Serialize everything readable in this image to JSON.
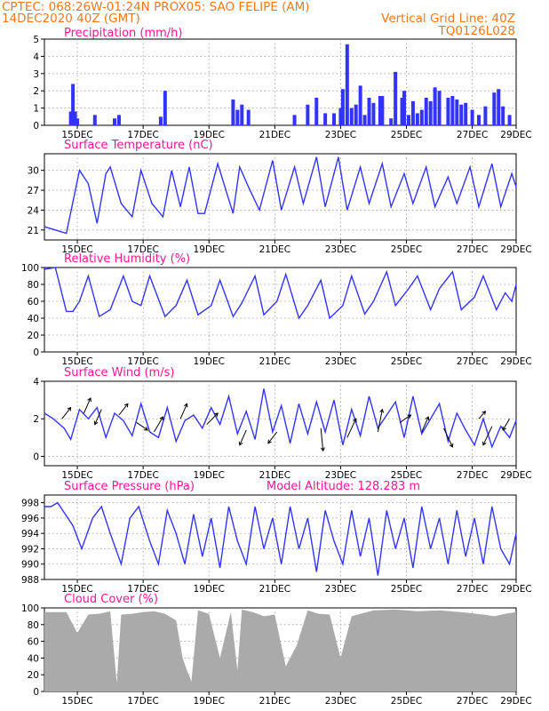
{
  "header": {
    "line1": "CPTEC:   068:26W-01:24N   PROX05: SAO FELIPE (AM)",
    "line2_left": "14DEC2020 40Z (GMT)",
    "line2_right": "Vertical Grid Line: 40Z",
    "line3_right": "TQ0126L028"
  },
  "colors": {
    "header": "#f07820",
    "title": "#ff1493",
    "series": "#3333ff",
    "wind_arrow": "#000000",
    "cloud": "#aaaaaa",
    "grid": "#999999"
  },
  "x_ticks": [
    "15DEC",
    "17DEC",
    "19DEC",
    "21DEC",
    "23DEC",
    "25DEC",
    "27DEC",
    "29DEC"
  ],
  "chart_data": [
    {
      "type": "bar",
      "title": "Precipitation (mm/h)",
      "ylim": [
        0,
        5
      ],
      "yticks": [
        "0",
        "1",
        "2",
        "3",
        "4",
        "5"
      ],
      "grid": true,
      "series": [
        {
          "x": [
            1.2,
            1.3,
            1.4,
            1.5,
            2.3,
            3.2,
            3.4,
            5.3,
            5.5,
            8.6,
            8.8,
            9.0,
            9.3,
            11.4,
            12.0,
            12.4,
            12.8,
            13.2,
            13.5,
            13.6,
            13.8,
            14.0,
            14.2,
            14.4,
            14.6,
            14.8,
            15.0,
            15.3,
            15.4,
            15.8,
            16.0,
            16.3,
            16.4,
            16.6,
            16.8,
            17.0,
            17.2,
            17.4,
            17.6,
            17.8,
            18.0,
            18.4,
            18.6,
            18.8,
            19.0,
            19.2,
            19.5,
            19.8,
            20.1,
            20.5,
            20.7,
            20.9,
            21.2
          ],
          "values": [
            0.8,
            2.4,
            0.8,
            0.4,
            0.6,
            0.4,
            0.6,
            0.5,
            2.0,
            1.5,
            0.9,
            1.2,
            0.9,
            0.6,
            1.2,
            1.6,
            0.7,
            0.7,
            1.0,
            2.1,
            4.7,
            1.0,
            1.2,
            2.3,
            0.6,
            1.6,
            1.3,
            1.7,
            1.7,
            0.4,
            3.1,
            1.6,
            2.0,
            0.6,
            1.4,
            0.7,
            0.9,
            1.6,
            1.4,
            2.2,
            2.0,
            1.6,
            1.7,
            1.5,
            1.2,
            1.3,
            0.9,
            0.6,
            1.1,
            1.9,
            2.1,
            1.1,
            0.6
          ]
        }
      ]
    },
    {
      "type": "line",
      "title": "Surface Temperature (nC)",
      "ylim": [
        19.5,
        32.5
      ],
      "yticks": [
        "21",
        "24",
        "27",
        "30"
      ],
      "grid": true,
      "series": [
        {
          "x": [
            0.0,
            0.5,
            1.0,
            1.6,
            2.0,
            2.4,
            2.8,
            3.0,
            3.5,
            4.0,
            4.4,
            4.9,
            5.4,
            5.8,
            6.2,
            6.6,
            7.0,
            7.3,
            7.9,
            8.6,
            8.9,
            9.3,
            9.8,
            10.4,
            10.8,
            11.4,
            11.8,
            12.4,
            12.8,
            13.4,
            13.8,
            14.4,
            14.8,
            15.4,
            15.8,
            16.4,
            16.8,
            17.4,
            17.8,
            18.4,
            18.8,
            19.4,
            19.8,
            20.4,
            20.8,
            21.3,
            21.5
          ],
          "values": [
            21.5,
            21.0,
            20.5,
            30.0,
            28.0,
            22.0,
            29.5,
            30.5,
            25.0,
            23.0,
            30.0,
            25.0,
            23.0,
            30.0,
            24.5,
            30.5,
            23.5,
            23.5,
            31.0,
            23.5,
            30.5,
            27.5,
            24.0,
            31.5,
            24.0,
            30.5,
            25.0,
            32.0,
            24.5,
            32.0,
            24.0,
            30.5,
            25.0,
            31.0,
            24.5,
            29.5,
            25.0,
            30.5,
            24.5,
            29.0,
            25.0,
            30.5,
            24.5,
            31.0,
            24.5,
            29.5,
            27.5
          ]
        }
      ]
    },
    {
      "type": "line",
      "title": "Relative Humidity (%)",
      "ylim": [
        0,
        100
      ],
      "yticks": [
        "0",
        "20",
        "40",
        "60",
        "80",
        "100"
      ],
      "grid": true,
      "series": [
        {
          "x": [
            0.0,
            0.5,
            1.0,
            1.3,
            1.6,
            2.0,
            2.5,
            3.0,
            3.6,
            4.0,
            4.4,
            4.8,
            5.5,
            6.0,
            6.5,
            7.0,
            7.6,
            8.0,
            8.6,
            9.0,
            9.6,
            10.0,
            10.6,
            11.0,
            11.6,
            12.0,
            12.6,
            13.0,
            13.6,
            14.0,
            14.6,
            15.0,
            15.6,
            16.0,
            16.6,
            17.0,
            17.6,
            18.0,
            18.6,
            19.0,
            19.6,
            20.0,
            20.6,
            21.0,
            21.3,
            21.5
          ],
          "values": [
            98,
            100,
            48,
            48,
            60,
            90,
            42,
            50,
            90,
            60,
            55,
            90,
            42,
            55,
            85,
            44,
            55,
            85,
            42,
            58,
            90,
            44,
            60,
            92,
            40,
            55,
            85,
            40,
            55,
            90,
            45,
            60,
            95,
            55,
            75,
            90,
            50,
            75,
            95,
            50,
            65,
            90,
            50,
            70,
            60,
            80
          ]
        }
      ]
    },
    {
      "type": "line",
      "title": "Surface Wind (m/s)",
      "ylim": [
        -0.5,
        4.0
      ],
      "yticks": [
        "0",
        "2",
        "4"
      ],
      "grid": true,
      "series": [
        {
          "x": [
            0.0,
            0.4,
            0.9,
            1.2,
            1.6,
            2.0,
            2.4,
            2.8,
            3.2,
            3.6,
            4.0,
            4.4,
            4.8,
            5.2,
            5.6,
            6.0,
            6.4,
            6.8,
            7.2,
            7.6,
            8.0,
            8.4,
            8.8,
            9.2,
            9.6,
            10.0,
            10.4,
            10.8,
            11.2,
            11.6,
            12.0,
            12.4,
            12.8,
            13.2,
            13.6,
            14.0,
            14.4,
            14.8,
            15.2,
            15.6,
            16.0,
            16.4,
            16.8,
            17.2,
            17.6,
            18.0,
            18.4,
            18.8,
            19.2,
            19.6,
            20.0,
            20.4,
            20.8,
            21.2,
            21.5
          ],
          "values": [
            2.3,
            2.0,
            1.5,
            0.9,
            2.5,
            2.0,
            2.6,
            1.0,
            2.3,
            1.9,
            1.1,
            2.8,
            1.3,
            1.0,
            2.6,
            0.8,
            1.9,
            2.2,
            1.5,
            2.6,
            1.7,
            3.2,
            1.2,
            2.4,
            0.9,
            3.6,
            1.3,
            2.7,
            0.7,
            2.8,
            1.2,
            2.9,
            1.3,
            3.0,
            0.6,
            2.5,
            1.1,
            3.2,
            1.5,
            2.2,
            2.9,
            1.0,
            3.2,
            1.2,
            2.0,
            2.8,
            0.8,
            2.3,
            1.4,
            0.6,
            2.0,
            0.5,
            1.6,
            1.0,
            1.9
          ]
        }
      ],
      "wind_vectors": [
        {
          "x": 0.8,
          "value": 2.0,
          "dx": 0.4,
          "dy": 0.3
        },
        {
          "x": 1.8,
          "value": 2.3,
          "dx": 0.3,
          "dy": 0.4
        },
        {
          "x": 2.6,
          "value": 2.5,
          "dx": -0.3,
          "dy": -0.4
        },
        {
          "x": 3.4,
          "value": 2.2,
          "dx": 0.4,
          "dy": 0.3
        },
        {
          "x": 4.2,
          "value": 1.8,
          "dx": 0.5,
          "dy": -0.2
        },
        {
          "x": 5.0,
          "value": 1.3,
          "dx": 0.4,
          "dy": 0.4
        },
        {
          "x": 6.2,
          "value": 2.0,
          "dx": 0.3,
          "dy": 0.4
        },
        {
          "x": 7.4,
          "value": 1.7,
          "dx": 0.5,
          "dy": 0.3
        },
        {
          "x": 9.2,
          "value": 1.4,
          "dx": -0.3,
          "dy": -0.4
        },
        {
          "x": 10.6,
          "value": 1.3,
          "dx": -0.4,
          "dy": -0.3
        },
        {
          "x": 12.6,
          "value": 1.5,
          "dx": 0.1,
          "dy": -0.6
        },
        {
          "x": 13.8,
          "value": 1.0,
          "dx": 0.4,
          "dy": 0.5
        },
        {
          "x": 15.2,
          "value": 1.3,
          "dx": 0.2,
          "dy": 0.6
        },
        {
          "x": 16.2,
          "value": 1.8,
          "dx": 0.5,
          "dy": 0.2
        },
        {
          "x": 17.2,
          "value": 1.3,
          "dx": 0.3,
          "dy": 0.4
        },
        {
          "x": 18.2,
          "value": 1.5,
          "dx": 0.4,
          "dy": -0.5
        },
        {
          "x": 19.8,
          "value": 2.0,
          "dx": 0.3,
          "dy": 0.2
        },
        {
          "x": 20.4,
          "value": 1.6,
          "dx": -0.4,
          "dy": -0.5
        },
        {
          "x": 21.2,
          "value": 2.0,
          "dx": -0.3,
          "dy": -0.3
        }
      ]
    },
    {
      "type": "line",
      "title": "Surface Pressure (hPa)",
      "subtitle": "Model Altitude: 128.283 m",
      "ylim": [
        988,
        999
      ],
      "yticks": [
        "988",
        "990",
        "992",
        "994",
        "996",
        "998"
      ],
      "grid": true,
      "series": [
        {
          "x": [
            0.0,
            0.3,
            0.6,
            1.3,
            1.7,
            2.2,
            2.6,
            3.0,
            3.5,
            3.9,
            4.3,
            4.8,
            5.2,
            5.6,
            6.0,
            6.4,
            6.8,
            7.2,
            7.6,
            8.0,
            8.4,
            8.8,
            9.2,
            9.6,
            10.0,
            10.4,
            10.8,
            11.2,
            11.6,
            12.0,
            12.4,
            12.8,
            13.2,
            13.6,
            14.0,
            14.4,
            14.8,
            15.2,
            15.6,
            16.0,
            16.4,
            16.8,
            17.2,
            17.6,
            18.0,
            18.4,
            18.8,
            19.2,
            19.6,
            20.0,
            20.4,
            20.8,
            21.2,
            21.5
          ],
          "values": [
            997.5,
            997.5,
            998.0,
            995.0,
            992.0,
            996.0,
            997.5,
            994.0,
            990.0,
            996.0,
            997.5,
            993.0,
            990.0,
            997.0,
            994.0,
            990.0,
            996.5,
            991.0,
            996.0,
            989.5,
            997.5,
            993.0,
            990.0,
            997.5,
            992.0,
            996.0,
            990.0,
            997.5,
            992.0,
            996.0,
            989.0,
            997.0,
            993.0,
            990.0,
            997.0,
            991.0,
            996.0,
            988.5,
            997.0,
            992.0,
            996.0,
            989.5,
            997.5,
            992.0,
            996.0,
            990.0,
            997.0,
            991.0,
            996.0,
            990.0,
            997.5,
            992.0,
            990.0,
            994.0
          ]
        }
      ]
    },
    {
      "type": "area",
      "title": "Cloud Cover (%)",
      "ylim": [
        0,
        100
      ],
      "yticks": [
        "0",
        "20",
        "40",
        "60",
        "80",
        "100"
      ],
      "grid": true,
      "series": [
        {
          "x": [
            0.0,
            1.0,
            1.5,
            2.0,
            2.5,
            3.0,
            3.3,
            3.5,
            4.0,
            4.5,
            5.0,
            5.5,
            6.0,
            6.3,
            6.5,
            6.7,
            7.0,
            7.5,
            8.0,
            8.5,
            8.8,
            9.0,
            9.5,
            10.0,
            10.5,
            11.0,
            11.5,
            12.0,
            12.5,
            13.0,
            13.5,
            14.0,
            15.0,
            16.0,
            17.0,
            18.0,
            19.0,
            20.0,
            20.5,
            21.0,
            21.5
          ],
          "values": [
            95,
            95,
            70,
            92,
            93,
            96,
            10,
            92,
            93,
            95,
            96,
            93,
            85,
            40,
            25,
            12,
            97,
            93,
            40,
            95,
            25,
            98,
            95,
            90,
            92,
            30,
            55,
            97,
            93,
            92,
            40,
            90,
            97,
            98,
            96,
            97,
            95,
            92,
            90,
            93,
            95
          ]
        }
      ]
    }
  ]
}
